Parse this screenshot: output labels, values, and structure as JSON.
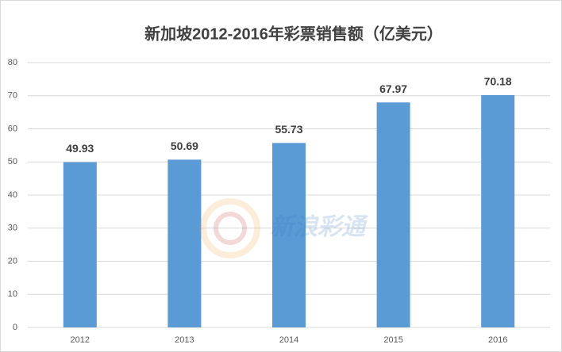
{
  "chart_data": {
    "type": "bar",
    "title": "新加坡2012-2016年彩票销售额（亿美元）",
    "categories": [
      "2012",
      "2013",
      "2014",
      "2015",
      "2016"
    ],
    "values": [
      49.93,
      50.69,
      55.73,
      67.97,
      70.18
    ],
    "color": "#5b9bd5",
    "ylim": [
      0,
      80
    ],
    "yticks": [
      0,
      10,
      20,
      30,
      40,
      50,
      60,
      70,
      80
    ],
    "grid": true,
    "watermark": "新浪彩通"
  }
}
